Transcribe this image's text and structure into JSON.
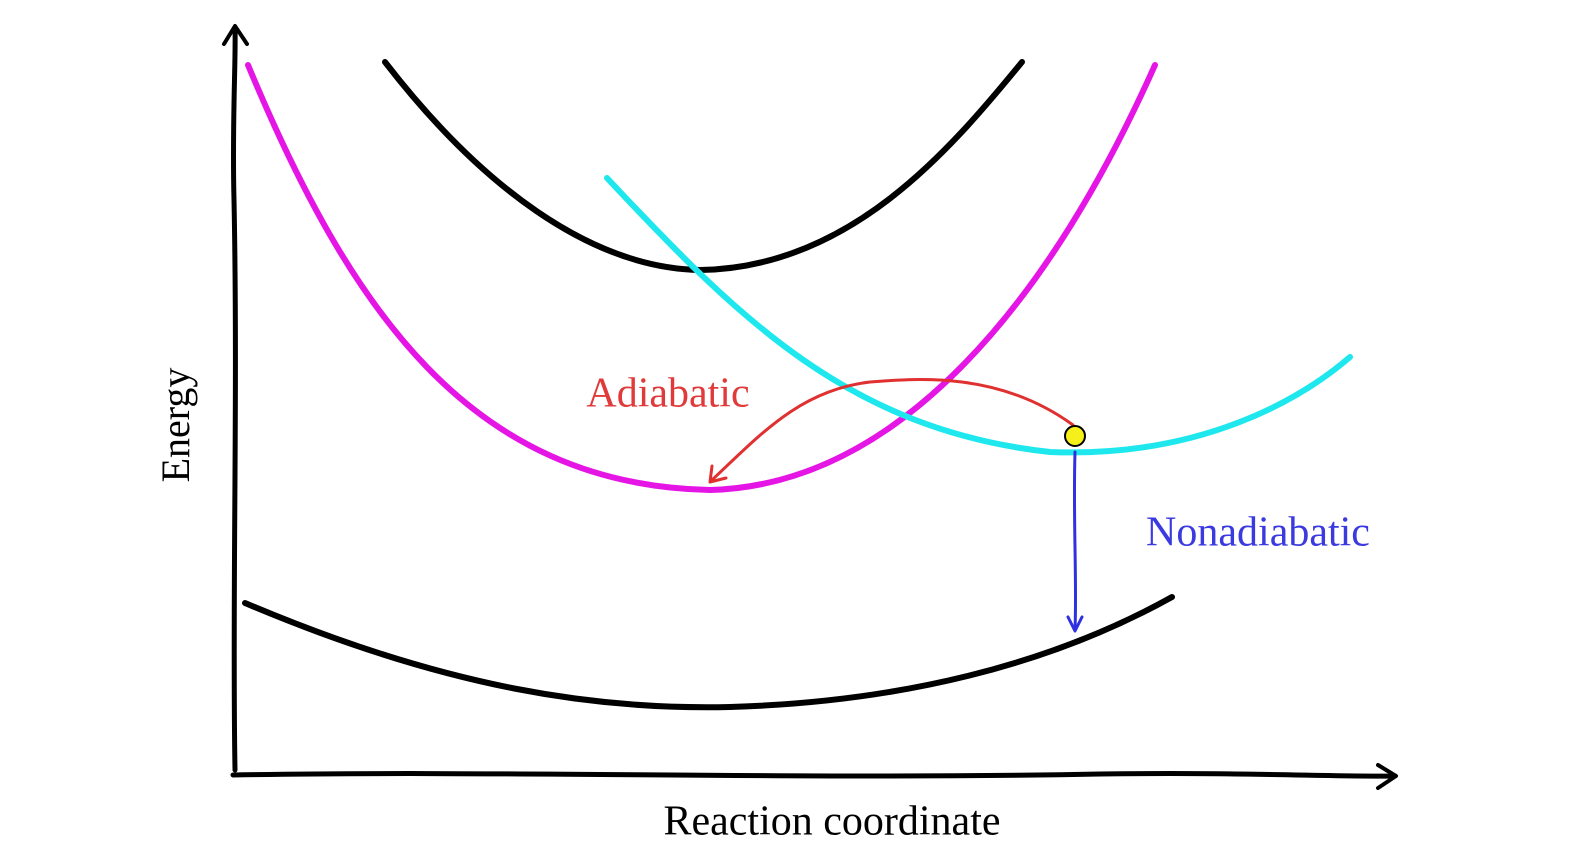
{
  "axes": {
    "y_label": "Energy",
    "x_label": "Reaction coordinate"
  },
  "labels": {
    "adiabatic": "Adiabatic",
    "nonadiabatic": "Nonadiabatic"
  }
}
